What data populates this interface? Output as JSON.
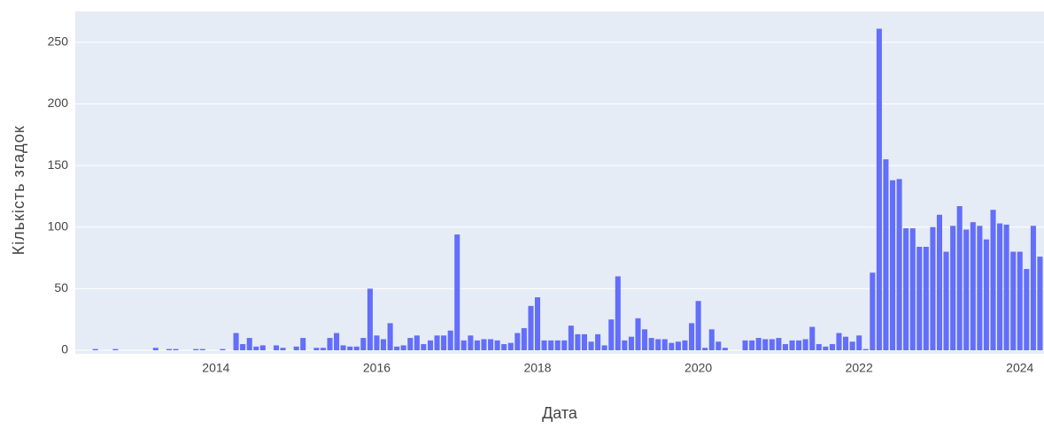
{
  "chart_data": {
    "type": "bar",
    "x_label": "Дата",
    "y_label": "Кількість згадок",
    "color": "#636efa",
    "grid": true,
    "xlim": [
      2012.25,
      2024.3
    ],
    "xticks": [
      2014,
      2016,
      2018,
      2020,
      2022,
      2024
    ],
    "ylim": [
      0,
      275
    ],
    "yticks": [
      0,
      50,
      100,
      150,
      200,
      250
    ],
    "x": [
      2012.5,
      2012.583,
      2012.667,
      2012.75,
      2012.833,
      2012.917,
      2013,
      2013.083,
      2013.167,
      2013.25,
      2013.333,
      2013.417,
      2013.5,
      2013.583,
      2013.667,
      2013.75,
      2013.833,
      2013.917,
      2014,
      2014.083,
      2014.167,
      2014.25,
      2014.333,
      2014.417,
      2014.5,
      2014.583,
      2014.667,
      2014.75,
      2014.833,
      2014.917,
      2015,
      2015.083,
      2015.167,
      2015.25,
      2015.333,
      2015.417,
      2015.5,
      2015.583,
      2015.667,
      2015.75,
      2015.833,
      2015.917,
      2016,
      2016.083,
      2016.167,
      2016.25,
      2016.333,
      2016.417,
      2016.5,
      2016.583,
      2016.667,
      2016.75,
      2016.833,
      2016.917,
      2017,
      2017.083,
      2017.167,
      2017.25,
      2017.333,
      2017.417,
      2017.5,
      2017.583,
      2017.667,
      2017.75,
      2017.833,
      2017.917,
      2018,
      2018.083,
      2018.167,
      2018.25,
      2018.333,
      2018.417,
      2018.5,
      2018.583,
      2018.667,
      2018.75,
      2018.833,
      2018.917,
      2019,
      2019.083,
      2019.167,
      2019.25,
      2019.333,
      2019.417,
      2019.5,
      2019.583,
      2019.667,
      2019.75,
      2019.833,
      2019.917,
      2020,
      2020.083,
      2020.167,
      2020.25,
      2020.333,
      2020.417,
      2020.5,
      2020.583,
      2020.667,
      2020.75,
      2020.833,
      2020.917,
      2021,
      2021.083,
      2021.167,
      2021.25,
      2021.333,
      2021.417,
      2021.5,
      2021.583,
      2021.667,
      2021.75,
      2021.833,
      2021.917,
      2022,
      2022.083,
      2022.167,
      2022.25,
      2022.333,
      2022.417,
      2022.5,
      2022.583,
      2022.667,
      2022.75,
      2022.833,
      2022.917,
      2023,
      2023.083,
      2023.167,
      2023.25,
      2023.333,
      2023.417,
      2023.5,
      2023.583,
      2023.667,
      2023.75,
      2023.833,
      2023.917,
      2024,
      2024.083,
      2024.167,
      2024.25
    ],
    "values": [
      1,
      0,
      0,
      1,
      0,
      0,
      0,
      0,
      0,
      2,
      0,
      1,
      1,
      0,
      0,
      1,
      1,
      0,
      0,
      1,
      0,
      14,
      5,
      10,
      3,
      4,
      0,
      4,
      2,
      0,
      3,
      10,
      0,
      2,
      2,
      10,
      14,
      4,
      3,
      3,
      10,
      50,
      12,
      9,
      22,
      3,
      4,
      10,
      12,
      5,
      8,
      12,
      12,
      16,
      94,
      8,
      12,
      8,
      9,
      9,
      8,
      5,
      6,
      14,
      18,
      36,
      43,
      8,
      8,
      8,
      8,
      20,
      13,
      13,
      7,
      13,
      4,
      25,
      60,
      8,
      11,
      26,
      17,
      10,
      9,
      9,
      6,
      7,
      8,
      22,
      40,
      2,
      17,
      7,
      2,
      0,
      0,
      8,
      8,
      10,
      9,
      9,
      10,
      5,
      8,
      8,
      9,
      19,
      5,
      3,
      5,
      14,
      11,
      7,
      12,
      1,
      63,
      261,
      155,
      138,
      139,
      99,
      99,
      84,
      84,
      100,
      110,
      80,
      101,
      117,
      98,
      104,
      101,
      90,
      114,
      103,
      102,
      80,
      80,
      66,
      101,
      76
    ]
  }
}
